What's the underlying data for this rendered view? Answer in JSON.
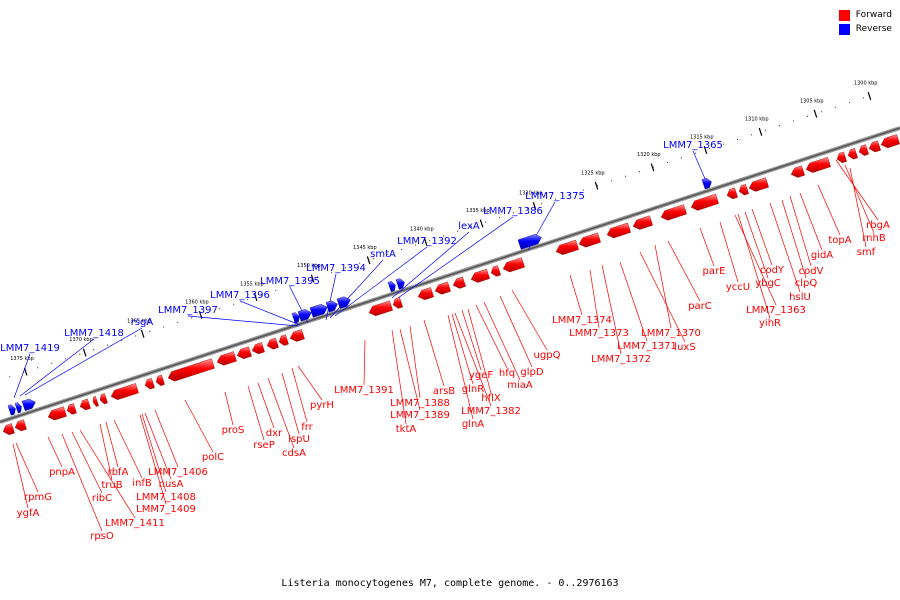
{
  "caption": "Listeria monocytogenes M7, complete genome. - 0..2976163",
  "legend": {
    "forward": {
      "label": "Forward",
      "color": "#ff0000"
    },
    "reverse": {
      "label": "Reverse",
      "color": "#0000ff"
    }
  },
  "ticks": [
    "1300 kbp",
    "1305 kbp",
    "1310 kbp",
    "1315 kbp",
    "1320 kbp",
    "1325 kbp",
    "1330 kbp",
    "1335 kbp",
    "1340 kbp",
    "1345 kbp",
    "1350 kbp",
    "1355 kbp",
    "1360 kbp",
    "1365 kbp",
    "1370 kbp",
    "1375 kbp"
  ],
  "reverse_labels": [
    "LMM7_1365",
    "LMM7_1375",
    "LMM7_1386",
    "lexA",
    "LMM7_1392",
    "smtA",
    "LMM7_1394",
    "LMM7_1395",
    "LMM7_1396",
    "LMM7_1397",
    "rsgA",
    "LMM7_1418",
    "LMM7_1419"
  ],
  "forward_labels": [
    "rbgA",
    "rnhB",
    "smf",
    "topA",
    "gidA",
    "codV",
    "clpQ",
    "hslU",
    "codY",
    "ybgC",
    "yihR",
    "LMM7_1363",
    "yccU",
    "parE",
    "parC",
    "LMM7_1370",
    "luxS",
    "LMM7_1371",
    "LMM7_1372",
    "LMM7_1373",
    "LMM7_1374",
    "ugpQ",
    "glpD",
    "miaA",
    "hfq",
    "hflX",
    "ygeF",
    "LMM7_1382",
    "glnR",
    "glnA",
    "arsB",
    "LMM7_1388",
    "LMM7_1389",
    "tktA",
    "LMM7_1391",
    "pyrH",
    "frr",
    "ispU",
    "cdsA",
    "dxr",
    "rseP",
    "proS",
    "polC",
    "LMM7_1406",
    "nusA",
    "LMM7_1408",
    "LMM7_1409",
    "infB",
    "rbfA",
    "truB",
    "LMM7_1411",
    "ribC",
    "rpsO",
    "pnpA",
    "rpmG",
    "ygfA"
  ]
}
